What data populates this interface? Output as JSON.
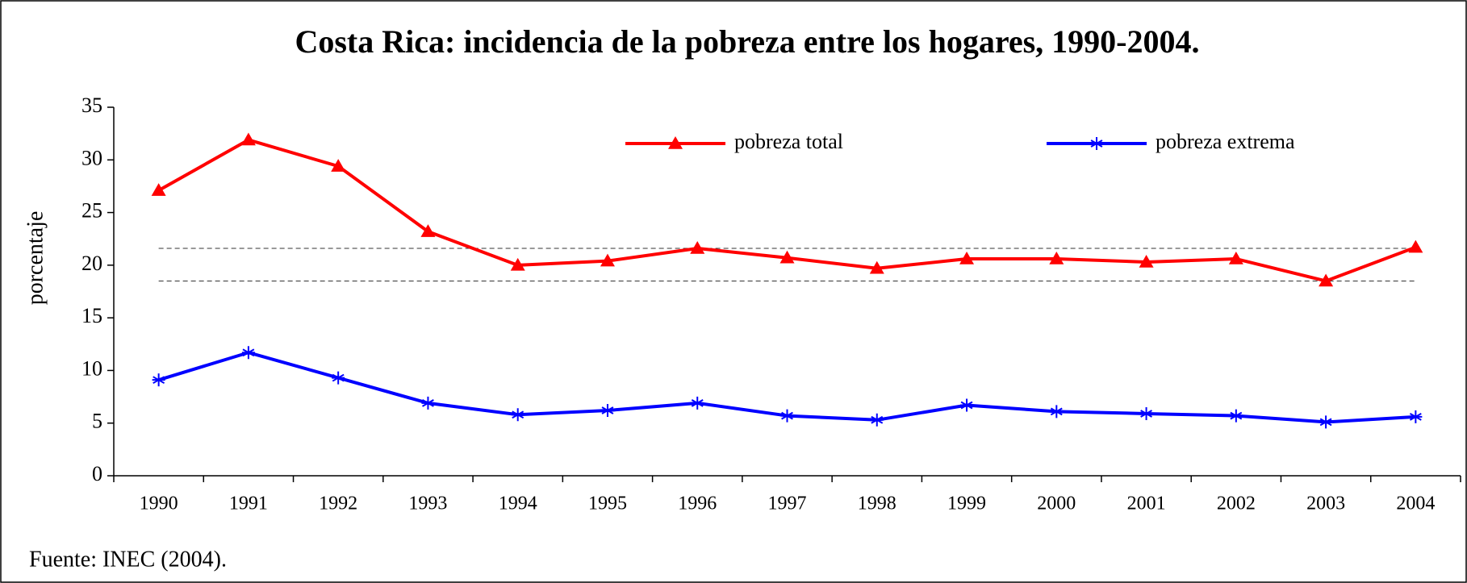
{
  "chart_data": {
    "type": "line",
    "title": "Costa Rica: incidencia de la pobreza entre los hogares, 1990-2004.",
    "ylabel": "porcentaje",
    "source": "Fuente: INEC (2004).",
    "categories": [
      "1990",
      "1991",
      "1992",
      "1993",
      "1994",
      "1995",
      "1996",
      "1997",
      "1998",
      "1999",
      "2000",
      "2001",
      "2002",
      "2003",
      "2004"
    ],
    "series": [
      {
        "name": "pobreza total",
        "color": "#ff0000",
        "marker": "triangle",
        "values": [
          27.1,
          31.9,
          29.4,
          23.2,
          20.0,
          20.4,
          21.6,
          20.7,
          19.7,
          20.6,
          20.6,
          20.3,
          20.6,
          18.5,
          21.7
        ]
      },
      {
        "name": "pobreza extrema",
        "color": "#0000ff",
        "marker": "asterisk",
        "values": [
          9.1,
          11.7,
          9.3,
          6.9,
          5.8,
          6.2,
          6.9,
          5.7,
          5.3,
          6.7,
          6.1,
          5.9,
          5.7,
          5.1,
          5.6
        ]
      }
    ],
    "reference_lines": [
      21.6,
      18.5
    ],
    "ylim": [
      0,
      35
    ],
    "yticks": [
      0,
      5,
      10,
      15,
      20,
      25,
      30,
      35
    ],
    "grid": false,
    "legend": "top"
  }
}
